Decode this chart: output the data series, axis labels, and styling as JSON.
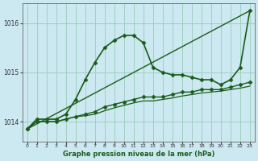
{
  "background_color": "#cce8f0",
  "grid_color": "#99ccbb",
  "line_color": "#1a5c1a",
  "xlabel": "Graphe pression niveau de la mer (hPa)",
  "xlim": [
    -0.5,
    23.5
  ],
  "ylim": [
    1013.6,
    1016.4
  ],
  "yticks": [
    1014,
    1015,
    1016
  ],
  "xticks": [
    0,
    1,
    2,
    3,
    4,
    5,
    6,
    7,
    8,
    9,
    10,
    11,
    12,
    13,
    14,
    15,
    16,
    17,
    18,
    19,
    20,
    21,
    22,
    23
  ],
  "series": [
    {
      "x": [
        0,
        23
      ],
      "y": [
        1013.85,
        1016.25
      ],
      "marker": null,
      "linewidth": 1.0
    },
    {
      "x": [
        0,
        1,
        2,
        3,
        4,
        5,
        6,
        7,
        8,
        9,
        10,
        11,
        12,
        13,
        14,
        15,
        16,
        17,
        18,
        19,
        20,
        21,
        22,
        23
      ],
      "y": [
        1013.85,
        1014.05,
        1014.05,
        1014.05,
        1014.15,
        1014.45,
        1014.85,
        1015.2,
        1015.5,
        1015.65,
        1015.75,
        1015.75,
        1015.6,
        1015.1,
        1015.0,
        1014.95,
        1014.95,
        1014.9,
        1014.85,
        1014.85,
        1014.75,
        1014.85,
        1015.1,
        1016.25
      ],
      "marker": "D",
      "markersize": 2.5,
      "linewidth": 1.2
    },
    {
      "x": [
        0,
        1,
        2,
        3,
        4,
        5,
        6,
        7,
        8,
        9,
        10,
        11,
        12,
        13,
        14,
        15,
        16,
        17,
        18,
        19,
        20,
        21,
        22,
        23
      ],
      "y": [
        1013.85,
        1014.0,
        1014.0,
        1014.0,
        1014.05,
        1014.1,
        1014.15,
        1014.2,
        1014.3,
        1014.35,
        1014.4,
        1014.45,
        1014.5,
        1014.5,
        1014.5,
        1014.55,
        1014.6,
        1014.6,
        1014.65,
        1014.65,
        1014.65,
        1014.7,
        1014.75,
        1014.8
      ],
      "marker": "D",
      "markersize": 2.5,
      "linewidth": 1.0
    },
    {
      "x": [
        0,
        1,
        2,
        3,
        4,
        5,
        6,
        7,
        8,
        9,
        10,
        11,
        12,
        13,
        14,
        15,
        16,
        17,
        18,
        19,
        20,
        21,
        22,
        23
      ],
      "y": [
        1013.85,
        1014.0,
        1014.0,
        1014.0,
        1014.05,
        1014.1,
        1014.12,
        1014.15,
        1014.22,
        1014.28,
        1014.33,
        1014.38,
        1014.42,
        1014.42,
        1014.45,
        1014.48,
        1014.52,
        1014.55,
        1014.58,
        1014.6,
        1014.62,
        1014.65,
        1014.68,
        1014.72
      ],
      "marker": null,
      "linewidth": 0.9
    }
  ]
}
